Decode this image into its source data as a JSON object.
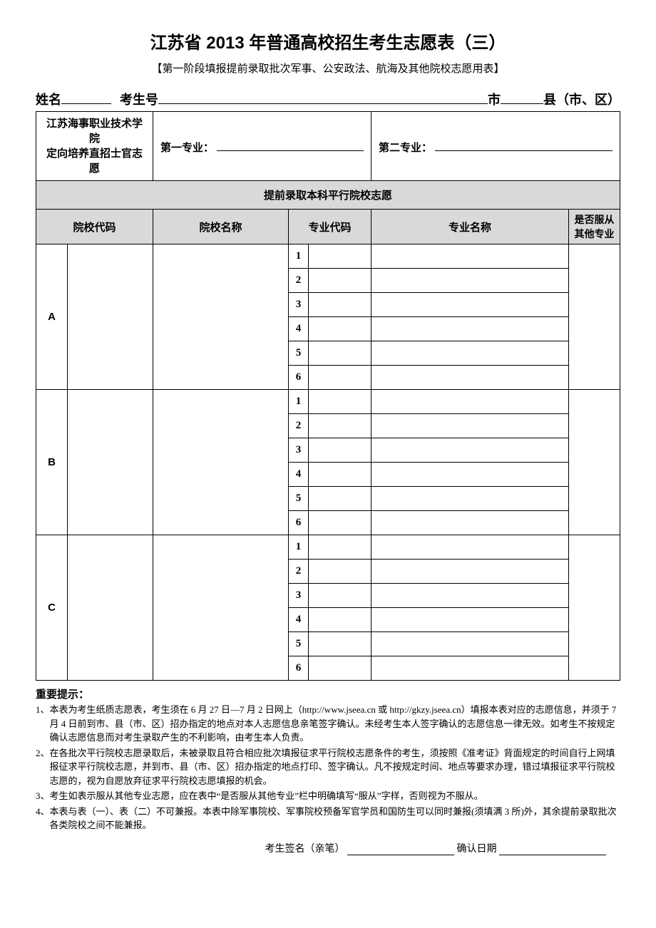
{
  "title": "江苏省 2013 年普通高校招生考生志愿表（三）",
  "subtitle": "【第一阶段填报提前录取批次军事、公安政法、航海及其他院校志愿用表】",
  "info": {
    "name_label": "姓名",
    "exam_id_label": "考生号",
    "city_label": "市",
    "county_label": "县（市、区）"
  },
  "vocational": {
    "school_label": "江苏海事职业技术学院\n定向培养直招士官志愿",
    "major1_label": "第一专业：",
    "major2_label": "第二专业："
  },
  "section_header": "提前录取本科平行院校志愿",
  "columns": {
    "code": "院校代码",
    "name": "院校名称",
    "major_code": "专业代码",
    "major_name": "专业名称",
    "obey": "是否服从\n其他专业"
  },
  "groups": [
    "A",
    "B",
    "C"
  ],
  "majors_per_group": 6,
  "notes_title": "重要提示：",
  "notes": [
    "1、本表为考生纸质志愿表，考生须在 6 月 27 日—7 月 2 日网上（http://www.jseea.cn 或 http://gkzy.jseea.cn）填报本表对应的志愿信息，并须于 7 月 4 日前到市、县（市、区）招办指定的地点对本人志愿信息亲笔签字确认。未经考生本人签字确认的志愿信息一律无效。如考生不按规定确认志愿信息而对考生录取产生的不利影响，由考生本人负责。",
    "2、在各批次平行院校志愿录取后，未被录取且符合相应批次填报征求平行院校志愿条件的考生，须按照《准考证》背面规定的时间自行上网填报征求平行院校志愿，并到市、县（市、区）招办指定的地点打印、签字确认。凡不按规定时间、地点等要求办理，错过填报征求平行院校志愿的，视为自愿放弃征求平行院校志愿填报的机会。",
    "3、考生如表示服从其他专业志愿，应在表中“是否服从其他专业”栏中明确填写“服从”字样，否则视为不服从。",
    "4、本表与表（一）、表（二）不可兼报。本表中除军事院校、军事院校预备军官学员和国防生可以同时兼报(须填满 3 所)外，其余提前录取批次各类院校之间不能兼报。"
  ],
  "sign": {
    "sign_label": "考生签名（亲笔）",
    "date_label": "确认日期"
  }
}
